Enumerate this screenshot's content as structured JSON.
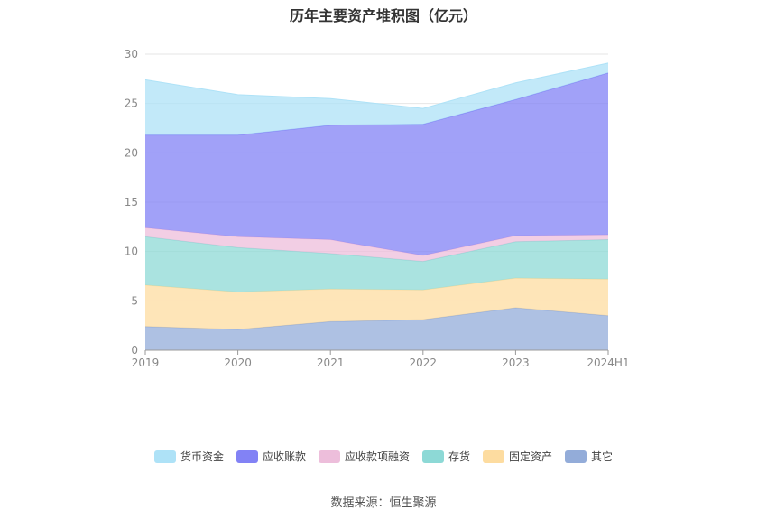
{
  "chart_data": {
    "type": "area",
    "stacked": true,
    "title": "历年主要资产堆积图（亿元）",
    "categories": [
      "2019",
      "2020",
      "2021",
      "2022",
      "2023",
      "2024H1"
    ],
    "ylim": [
      0,
      30
    ],
    "yticks": [
      0,
      5,
      10,
      15,
      20,
      25,
      30
    ],
    "series": [
      {
        "name": "其它",
        "color": "#93acd9",
        "values": [
          2.4,
          2.1,
          2.9,
          3.1,
          4.3,
          3.5
        ]
      },
      {
        "name": "固定资产",
        "color": "#fddca0",
        "values": [
          4.2,
          3.8,
          3.3,
          3.0,
          3.0,
          3.7
        ]
      },
      {
        "name": "存货",
        "color": "#8dd9d6",
        "values": [
          4.9,
          4.5,
          3.6,
          2.9,
          3.7,
          4.0
        ]
      },
      {
        "name": "应收款项融资",
        "color": "#edbedb",
        "values": [
          0.9,
          1.1,
          1.4,
          0.6,
          0.6,
          0.5
        ]
      },
      {
        "name": "应收账款",
        "color": "#8282f5",
        "values": [
          9.4,
          10.3,
          11.6,
          13.3,
          13.8,
          16.4
        ]
      },
      {
        "name": "货币资金",
        "color": "#aee2f7",
        "values": [
          5.6,
          4.1,
          2.7,
          1.6,
          1.7,
          1.0
        ]
      }
    ],
    "legend_order": [
      "货币资金",
      "应收账款",
      "应收款项融资",
      "存货",
      "固定资产",
      "其它"
    ]
  },
  "source": "数据来源：恒生聚源"
}
